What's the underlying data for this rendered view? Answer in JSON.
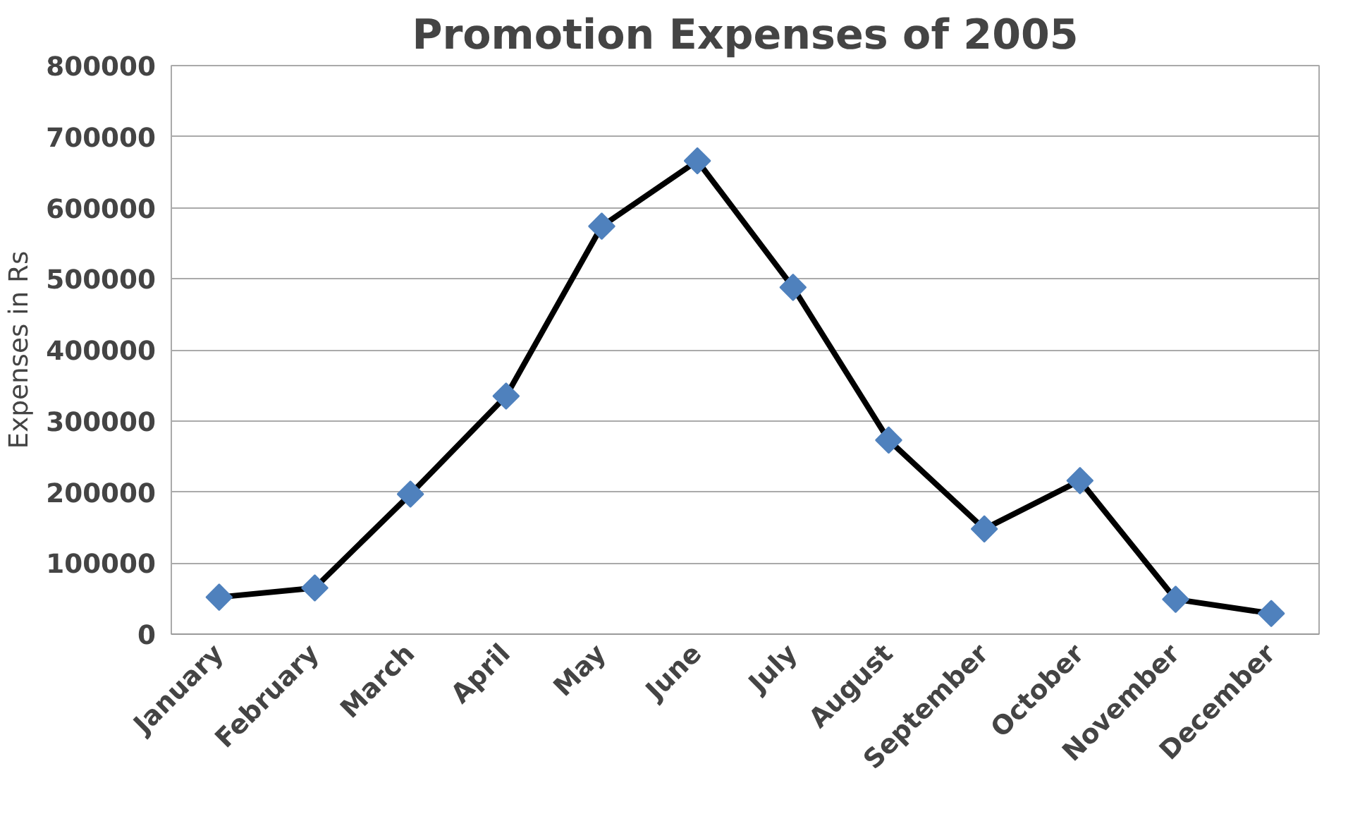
{
  "chart_data": {
    "type": "line",
    "title": "Promotion Expenses of 2005",
    "ylabel": "Expenses in Rs",
    "categories": [
      "January",
      "February",
      "March",
      "April",
      "May",
      "June",
      "July",
      "August",
      "September",
      "October",
      "November",
      "December"
    ],
    "series": [
      {
        "color": "#000000",
        "values": [
          52000,
          65000,
          197000,
          335000,
          574000,
          666000,
          488000,
          273000,
          148000,
          216000,
          49000,
          29000
        ]
      }
    ],
    "marker": "diamond",
    "ylim": [
      0,
      800000
    ],
    "yticks": [
      0,
      100000,
      200000,
      300000,
      400000,
      500000,
      600000,
      700000,
      800000
    ],
    "grid": "y"
  }
}
